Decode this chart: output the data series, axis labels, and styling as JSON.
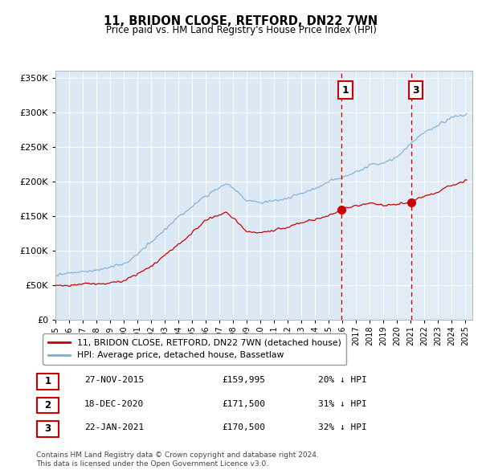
{
  "title": "11, BRIDON CLOSE, RETFORD, DN22 7WN",
  "subtitle": "Price paid vs. HM Land Registry's House Price Index (HPI)",
  "ytick_vals": [
    0,
    50000,
    100000,
    150000,
    200000,
    250000,
    300000,
    350000
  ],
  "ylim": [
    0,
    360000
  ],
  "xlim_start": 1995.0,
  "xlim_end": 2025.5,
  "bg_color": "#ffffff",
  "plot_bg_color": "#dce9f5",
  "plot_bg_right": "#e8f0f9",
  "red_line_color": "#cc0000",
  "blue_line_color": "#7bafd4",
  "marker_color": "#cc0000",
  "dashed_line_color": "#cc0000",
  "legend_label_red": "11, BRIDON CLOSE, RETFORD, DN22 7WN (detached house)",
  "legend_label_blue": "HPI: Average price, detached house, Bassetlaw",
  "sale1_date": 2015.91,
  "sale1_price": 159995,
  "sale1_label": "1",
  "sale2_date": 2020.96,
  "sale2_price": 171500,
  "sale2_label": "2",
  "sale3_date": 2021.06,
  "sale3_price": 170500,
  "sale3_label": "3",
  "table_rows": [
    [
      "1",
      "27-NOV-2015",
      "£159,995",
      "20% ↓ HPI"
    ],
    [
      "2",
      "18-DEC-2020",
      "£171,500",
      "31% ↓ HPI"
    ],
    [
      "3",
      "22-JAN-2021",
      "£170,500",
      "32% ↓ HPI"
    ]
  ],
  "footnote": "Contains HM Land Registry data © Crown copyright and database right 2024.\nThis data is licensed under the Open Government Licence v3.0."
}
